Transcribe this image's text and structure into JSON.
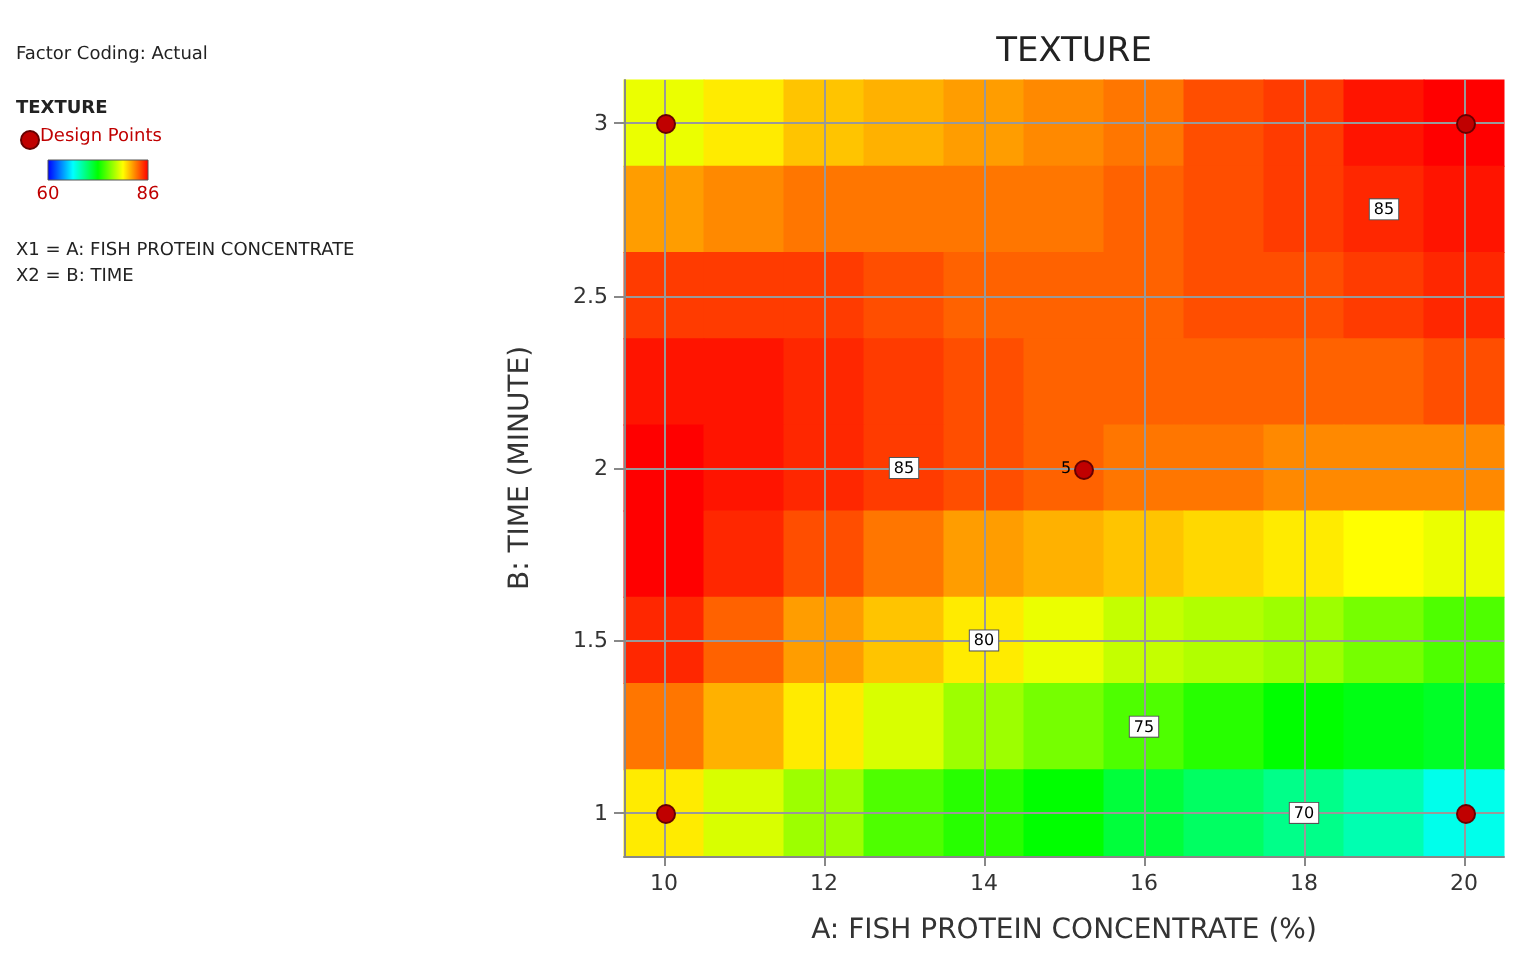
{
  "chart_data": {
    "type": "heatmap",
    "title": "TEXTURE",
    "xlabel": "A: FISH PROTEIN CONCENTRATE (%)",
    "ylabel": "B: TIME (MINUTE)",
    "clabel": "TEXTURE",
    "categories": [
      "10",
      null,
      "12",
      null,
      "14",
      null,
      "16",
      null,
      "18",
      null,
      "20"
    ],
    "y_categories": [
      "3",
      null,
      "2.5",
      null,
      "2",
      null,
      "1.5",
      null,
      "1"
    ],
    "cells": [
      [
        79,
        80,
        81,
        81.5,
        82,
        82.5,
        83,
        84,
        84.5,
        85.5,
        86
      ],
      [
        82,
        82.5,
        83,
        83,
        83,
        83,
        83.5,
        84,
        84.5,
        85,
        85.5
      ],
      [
        84.5,
        84.5,
        84.5,
        84,
        83.5,
        83.5,
        83.5,
        84,
        84,
        84.5,
        85
      ],
      [
        85.5,
        85.5,
        85,
        84.5,
        84,
        83.5,
        83.5,
        83.5,
        83.5,
        83.5,
        84
      ],
      [
        86,
        85.5,
        85,
        84.5,
        84,
        83.5,
        83,
        83,
        82.5,
        82.5,
        82.5
      ],
      [
        86,
        85,
        84,
        83,
        82,
        81.5,
        81,
        80.5,
        80,
        79.5,
        79
      ],
      [
        85,
        83.5,
        82,
        81,
        80,
        79,
        78,
        77.5,
        77,
        76,
        75
      ],
      [
        83,
        81.5,
        80,
        78.5,
        77,
        76,
        75,
        74,
        73,
        72.5,
        72
      ],
      [
        80,
        78.5,
        77,
        75,
        74,
        73,
        71.5,
        70.5,
        69.5,
        68.5,
        67
      ]
    ],
    "cell_labels": [
      [
        null,
        null,
        null,
        null,
        null,
        null,
        null,
        null,
        null,
        null,
        null
      ],
      [
        null,
        null,
        null,
        null,
        null,
        null,
        null,
        null,
        null,
        "85",
        null
      ],
      [
        null,
        null,
        null,
        null,
        null,
        null,
        null,
        null,
        null,
        null,
        null
      ],
      [
        null,
        null,
        null,
        null,
        null,
        null,
        null,
        null,
        null,
        null,
        null
      ],
      [
        null,
        null,
        null,
        "85",
        null,
        null,
        null,
        null,
        null,
        null,
        null
      ],
      [
        null,
        null,
        null,
        null,
        null,
        null,
        null,
        null,
        null,
        null,
        null
      ],
      [
        null,
        null,
        null,
        null,
        "80",
        null,
        null,
        null,
        null,
        null,
        null
      ],
      [
        null,
        null,
        null,
        null,
        null,
        null,
        "75",
        null,
        null,
        null,
        null
      ],
      [
        null,
        null,
        null,
        null,
        null,
        null,
        null,
        null,
        "70",
        null,
        null
      ]
    ],
    "colors": [
      "#0000ff",
      "#00ffff",
      "#00ff00",
      "#ffff00",
      "#ff0000"
    ],
    "clim": [
      60,
      86
    ],
    "cticks": [
      60,
      86
    ],
    "grid": true,
    "annotations": [
      "Factor Coding: Actual",
      "Design Points",
      "X1 = A: FISH PROTEIN CONCENTRATE",
      "X2 = B: TIME",
      "5"
    ]
  }
}
